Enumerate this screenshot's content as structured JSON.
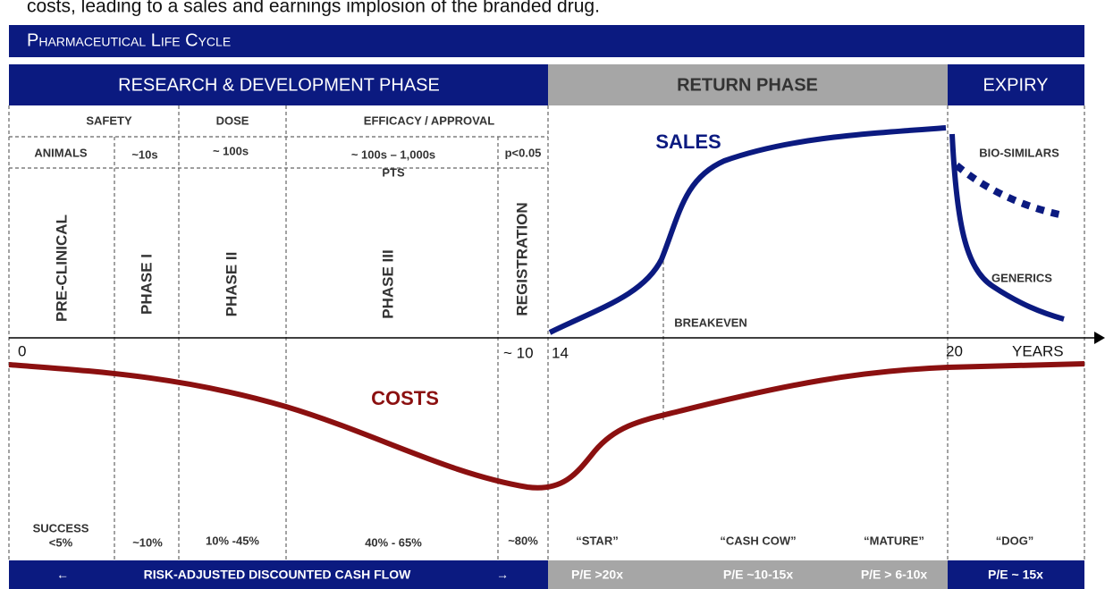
{
  "intro_text": "costs, leading to a sales and earnings implosion of the branded drug.",
  "title": "Pharmaceutical Life Cycle",
  "phases": [
    "RESEARCH & DEVELOPMENT PHASE",
    "RETURN PHASE",
    "EXPIRY"
  ],
  "stages": [
    "SAFETY",
    "DOSE",
    "EFFICACY / APPROVAL"
  ],
  "subjects": [
    "ANIMALS",
    "~10s",
    "~ 100s",
    "~ 100s – 1,000s",
    "PTS",
    "p<0.05"
  ],
  "trial_phases": [
    "PRE-CLINICAL",
    "PHASE I",
    "PHASE II",
    "PHASE III",
    "REGISTRATION"
  ],
  "axis": {
    "labels": [
      "0",
      "~ 10",
      "14",
      "20"
    ],
    "unit": "YEARS"
  },
  "curve_labels": {
    "sales": "SALES",
    "costs": "COSTS",
    "breakeven": "BREAKEVEN",
    "biosimilars": "BIO-SIMILARS",
    "generics": "GENERICS"
  },
  "success_rates": [
    "SUCCESS",
    "<5%",
    "~10%",
    "10% -45%",
    "40% - 65%",
    "~80%"
  ],
  "market_stages": [
    "“STAR”",
    "“CASH COW”",
    "“MATURE”",
    "“DOG”"
  ],
  "footer": {
    "arrow_left": "←",
    "valuation": "RISK-ADJUSTED DISCOUNTED CASH FLOW",
    "arrow_right": "→",
    "pe": [
      "P/E >20x",
      "P/E ~10-15x",
      "P/E > 6-10x",
      "P/E ~ 15x"
    ]
  }
}
